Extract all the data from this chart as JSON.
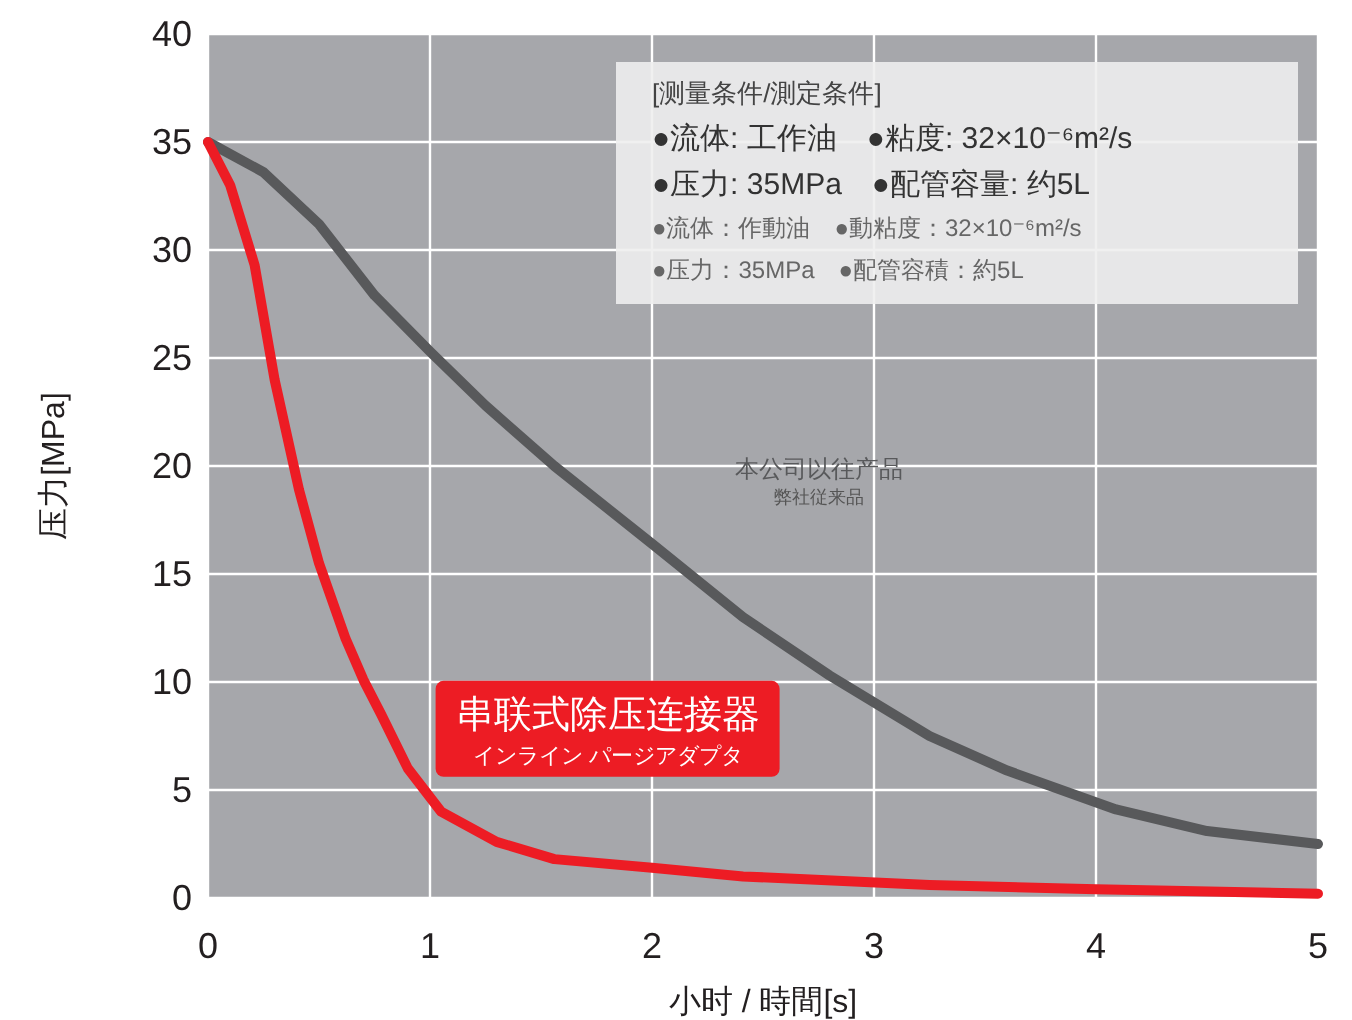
{
  "chart_data": {
    "type": "line",
    "xlabel": "小时 / 時間[s]",
    "ylabel": "压力[MPa]",
    "xlim": [
      0,
      5
    ],
    "xticks": [
      0,
      1,
      2,
      3,
      4,
      5
    ],
    "ylim": [
      0,
      40
    ],
    "yticks": [
      0,
      5,
      10,
      15,
      20,
      25,
      30,
      35,
      40
    ],
    "grid": true,
    "line_style": "solid",
    "series": [
      {
        "name": "本公司以往产品",
        "color": "#58595b",
        "x": [
          0,
          0.25,
          0.5,
          0.75,
          1,
          1.25,
          1.56,
          2,
          2.41,
          2.8,
          3.25,
          3.6,
          4.09,
          4.5,
          5
        ],
        "values": [
          35,
          33.6,
          31.2,
          27.9,
          25.3,
          22.8,
          20,
          16.4,
          13,
          10.3,
          7.5,
          5.9,
          4.1,
          3.1,
          2.5
        ]
      },
      {
        "name": "串联式除压连接器",
        "color": "#ed1c24",
        "x": [
          0,
          0.1,
          0.21,
          0.3,
          0.41,
          0.5,
          0.62,
          0.7,
          0.78,
          0.9,
          1.05,
          1.3,
          1.56,
          2,
          2.41,
          3.25,
          4,
          5
        ],
        "values": [
          35,
          33,
          29.3,
          24,
          18.9,
          15.5,
          12,
          10.1,
          8.5,
          6,
          4,
          2.6,
          1.8,
          1.4,
          1.0,
          0.6,
          0.4,
          0.2
        ]
      }
    ],
    "annotations": [
      "[测量条件/測定条件]",
      "●流体: 工作油　●粘度: 32×10⁻⁶m²/s",
      "●压力: 35MPa　●配管容量: 约5L",
      "●流体：作動油　●動粘度：32×10⁻⁶m²/s",
      "●压力：35MPa　●配管容積：約5L",
      "弊社従来品",
      "インライン パージアダプタ"
    ]
  }
}
